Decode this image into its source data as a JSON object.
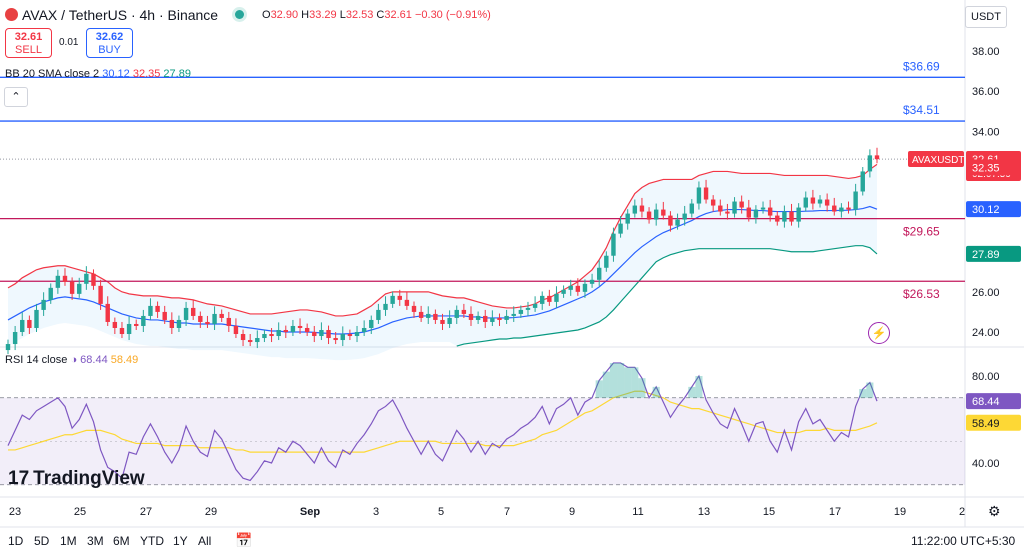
{
  "header": {
    "symbol_title": "AVAX / TetherUS · 4h · Binance",
    "ohlc": {
      "o_label": "O",
      "o": "32.90",
      "h_label": "H",
      "h": "33.29",
      "l_label": "L",
      "l": "32.53",
      "c_label": "C",
      "c": "32.61",
      "change": "−0.30 (−0.91%)"
    },
    "sell_price": "32.61",
    "sell_label": "SELL",
    "spread": "0.01",
    "buy_price": "32.62",
    "buy_label": "BUY",
    "currency": "USDT"
  },
  "indicators": {
    "bb": {
      "label": "BB 20 SMA close 2",
      "basis": "30.12",
      "upper": "32.35",
      "lower": "27.89"
    },
    "rsi": {
      "label": "RSI 14 close",
      "value": "68.44",
      "ma": "58.49"
    }
  },
  "bottom_bar": {
    "timeframes": [
      "1D",
      "5D",
      "1M",
      "3M",
      "6M",
      "YTD",
      "1Y",
      "All"
    ],
    "clock": "11:22:00 UTC+5:30",
    "brand": "TradingView"
  },
  "colors": {
    "up": "#26a69a",
    "down": "#f23645",
    "bb_basis": "#2962ff",
    "bb_band": "#f23645",
    "bb_lower": "#089981",
    "rsi": "#7e57c2",
    "rsi_ma": "#fdd835",
    "hline_blue": "#2962ff",
    "hline_red": "#c2185b"
  },
  "chart_data": {
    "type": "candlestick",
    "y_axis": {
      "ticks": [
        24,
        26,
        28,
        30,
        32,
        34,
        36,
        38
      ],
      "tick_labels": [
        "24.00",
        "26.00",
        "28.00",
        "30.00",
        "32.00",
        "34.00",
        "36.00",
        "38.00"
      ]
    },
    "x_axis": {
      "ticks": [
        "23",
        "25",
        "27",
        "29",
        "Sep",
        "3",
        "5",
        "7",
        "9",
        "11",
        "13",
        "15",
        "17",
        "19",
        "2"
      ]
    },
    "hlines": [
      {
        "label": "$36.69",
        "value": 36.69,
        "color": "blue"
      },
      {
        "label": "$34.51",
        "value": 34.51,
        "color": "blue"
      },
      {
        "label": "$29.65",
        "value": 29.65,
        "color": "red"
      },
      {
        "label": "$26.53",
        "value": 26.53,
        "color": "red"
      }
    ],
    "price_labels": {
      "symbol": "AVAXUSDT",
      "last": "32.61",
      "countdown": "02:07:59",
      "bb_upper": "32.35",
      "bb_basis": "30.12",
      "bb_lower": "27.89"
    },
    "closes": [
      23.4,
      24.0,
      24.6,
      24.2,
      25.1,
      25.6,
      26.2,
      26.8,
      26.5,
      25.9,
      26.4,
      26.9,
      26.3,
      25.4,
      24.5,
      24.2,
      23.9,
      24.4,
      24.3,
      24.8,
      25.3,
      25.0,
      24.6,
      24.2,
      24.6,
      25.2,
      24.8,
      24.5,
      24.4,
      24.9,
      24.7,
      24.3,
      23.9,
      23.6,
      23.5,
      23.7,
      23.9,
      23.8,
      24.1,
      24.0,
      24.3,
      24.2,
      24.0,
      23.8,
      24.1,
      23.7,
      23.6,
      23.9,
      23.8,
      24.0,
      24.2,
      24.6,
      25.1,
      25.4,
      25.8,
      25.6,
      25.3,
      25.0,
      24.7,
      24.9,
      24.6,
      24.4,
      24.7,
      25.1,
      24.9,
      24.6,
      24.8,
      24.5,
      24.7,
      24.6,
      24.8,
      24.9,
      25.1,
      25.2,
      25.4,
      25.8,
      25.5,
      25.9,
      26.1,
      26.3,
      26.0,
      26.4,
      26.6,
      27.2,
      27.8,
      28.9,
      29.4,
      29.9,
      30.3,
      30.0,
      29.6,
      30.1,
      29.8,
      29.3,
      29.6,
      29.9,
      30.4,
      31.2,
      30.6,
      30.3,
      30.0,
      29.9,
      30.5,
      30.2,
      29.7,
      30.1,
      30.2,
      29.8,
      29.5,
      30.0,
      29.5,
      30.2,
      30.7,
      30.4,
      30.6,
      30.3,
      30.0,
      30.2,
      30.1,
      31.0,
      32.0,
      32.8,
      32.61
    ],
    "bb_upper": [
      26.2,
      26.4,
      26.7,
      26.9,
      27.1,
      27.2,
      27.25,
      27.3,
      27.3,
      27.2,
      27.1,
      27.0,
      26.9,
      26.7,
      26.5,
      26.2,
      26.0,
      25.9,
      25.85,
      25.8,
      25.8,
      25.8,
      25.75,
      25.7,
      25.7,
      25.65,
      25.6,
      25.5,
      25.4,
      25.35,
      25.3,
      25.2,
      25.1,
      25.0,
      24.9,
      24.9,
      24.9,
      24.9,
      24.95,
      25.0,
      25.05,
      25.1,
      25.1,
      25.05,
      25.0,
      24.9,
      24.8,
      24.8,
      24.85,
      24.9,
      25.1,
      25.3,
      25.6,
      25.9,
      26.0,
      26.0,
      26.0,
      26.0,
      26.0,
      26.0,
      25.9,
      25.8,
      25.75,
      25.7,
      25.7,
      25.6,
      25.5,
      25.4,
      25.3,
      25.25,
      25.2,
      25.2,
      25.25,
      25.3,
      25.4,
      25.6,
      25.7,
      25.9,
      26.1,
      26.3,
      26.5,
      26.8,
      27.1,
      27.6,
      28.2,
      29.0,
      29.7,
      30.3,
      30.9,
      31.2,
      31.4,
      31.5,
      31.6,
      31.6,
      31.6,
      31.6,
      31.6,
      31.8,
      31.9,
      32.0,
      32.0,
      32.0,
      31.95,
      31.9,
      31.9,
      31.9,
      31.9,
      31.9,
      31.85,
      31.8,
      31.8,
      31.8,
      31.8,
      31.8,
      31.8,
      31.8,
      31.75,
      31.7,
      31.65,
      31.7,
      31.8,
      32.1,
      32.35
    ],
    "bb_basis": [
      24.6,
      24.8,
      25.0,
      25.2,
      25.35,
      25.5,
      25.6,
      25.7,
      25.75,
      25.7,
      25.65,
      25.6,
      25.5,
      25.35,
      25.2,
      25.05,
      24.9,
      24.8,
      24.7,
      24.65,
      24.6,
      24.6,
      24.55,
      24.5,
      24.45,
      24.45,
      24.4,
      24.4,
      24.4,
      24.4,
      24.4,
      24.35,
      24.3,
      24.25,
      24.2,
      24.15,
      24.1,
      24.05,
      24.05,
      24.0,
      24.0,
      24.0,
      24.0,
      23.98,
      23.95,
      23.93,
      23.9,
      23.9,
      23.92,
      23.95,
      24.0,
      24.1,
      24.2,
      24.35,
      24.5,
      24.6,
      24.7,
      24.75,
      24.8,
      24.8,
      24.8,
      24.8,
      24.8,
      24.8,
      24.8,
      24.75,
      24.75,
      24.7,
      24.7,
      24.7,
      24.7,
      24.72,
      24.75,
      24.8,
      24.85,
      24.95,
      25.05,
      25.2,
      25.35,
      25.5,
      25.65,
      25.8,
      26.0,
      26.25,
      26.55,
      26.9,
      27.25,
      27.6,
      27.95,
      28.25,
      28.5,
      28.75,
      28.95,
      29.1,
      29.25,
      29.4,
      29.55,
      29.75,
      29.9,
      30.0,
      30.05,
      30.1,
      30.1,
      30.1,
      30.08,
      30.05,
      30.05,
      30.02,
      30.0,
      30.0,
      30.0,
      30.0,
      30.02,
      30.03,
      30.05,
      30.05,
      30.05,
      30.06,
      30.07,
      30.1,
      30.15,
      30.25,
      30.12
    ],
    "bb_lower": [
      null,
      null,
      null,
      null,
      null,
      null,
      null,
      null,
      null,
      null,
      null,
      null,
      null,
      null,
      null,
      null,
      null,
      null,
      null,
      null,
      null,
      null,
      null,
      null,
      null,
      null,
      null,
      null,
      null,
      null,
      null,
      null,
      null,
      null,
      null,
      null,
      null,
      null,
      null,
      null,
      null,
      null,
      null,
      null,
      null,
      null,
      null,
      null,
      null,
      null,
      null,
      null,
      null,
      null,
      null,
      null,
      null,
      null,
      null,
      null,
      null,
      null,
      null,
      23.3,
      23.4,
      23.45,
      23.5,
      23.55,
      23.6,
      23.65,
      23.65,
      23.7,
      23.7,
      23.75,
      23.8,
      23.85,
      23.9,
      23.95,
      24.0,
      24.05,
      24.1,
      24.2,
      24.35,
      24.5,
      24.75,
      25.1,
      25.5,
      25.9,
      26.3,
      26.7,
      27.1,
      27.5,
      27.7,
      27.85,
      27.95,
      28.05,
      28.1,
      28.15,
      28.15,
      28.15,
      28.15,
      28.15,
      28.15,
      28.15,
      28.15,
      28.15,
      28.15,
      28.15,
      28.1,
      28.05,
      28.0,
      28.0,
      28.0,
      28.0,
      28.05,
      28.1,
      28.15,
      28.2,
      28.25,
      28.3,
      28.3,
      28.2,
      27.89
    ],
    "rsi": [
      48,
      55,
      62,
      60,
      64,
      66,
      68,
      70,
      66,
      56,
      60,
      67,
      59,
      46,
      38,
      36,
      33,
      45,
      44,
      52,
      58,
      52,
      45,
      40,
      46,
      57,
      50,
      45,
      43,
      55,
      51,
      44,
      37,
      33,
      32,
      36,
      41,
      40,
      47,
      45,
      50,
      48,
      44,
      40,
      47,
      41,
      38,
      46,
      44,
      49,
      53,
      58,
      64,
      66,
      69,
      63,
      56,
      50,
      44,
      50,
      44,
      41,
      48,
      55,
      51,
      45,
      50,
      44,
      49,
      47,
      51,
      53,
      56,
      58,
      61,
      66,
      58,
      65,
      67,
      70,
      62,
      68,
      70,
      78,
      82,
      86,
      86,
      84,
      84,
      79,
      70,
      75,
      68,
      61,
      66,
      70,
      75,
      80,
      69,
      63,
      58,
      56,
      65,
      58,
      50,
      58,
      59,
      50,
      45,
      55,
      46,
      59,
      65,
      58,
      60,
      55,
      50,
      54,
      52,
      66,
      74,
      77,
      68.44
    ],
    "rsi_ma": [
      46,
      46,
      47,
      48,
      49,
      50,
      51,
      52,
      53,
      53,
      54,
      55,
      55,
      55,
      54,
      53,
      51,
      50,
      49,
      49,
      49,
      49,
      48,
      48,
      48,
      48,
      48,
      47,
      47,
      47,
      47,
      47,
      46,
      46,
      45,
      45,
      45,
      45,
      45,
      45,
      45,
      45,
      45,
      45,
      45,
      45,
      45,
      45,
      45,
      45,
      45,
      46,
      47,
      48,
      49,
      50,
      50,
      50,
      50,
      50,
      50,
      49,
      49,
      49,
      49,
      49,
      49,
      48,
      48,
      48,
      48,
      48,
      49,
      50,
      51,
      53,
      54,
      55,
      57,
      59,
      61,
      63,
      64,
      66,
      68,
      70,
      71,
      72,
      73,
      73,
      72,
      71,
      70,
      68,
      67,
      66,
      65,
      65,
      64,
      63,
      62,
      61,
      60,
      59,
      58,
      57,
      56,
      55,
      54,
      54,
      54,
      54,
      55,
      55,
      55,
      56,
      55,
      55,
      55,
      55,
      56,
      57,
      58.49
    ],
    "rsi_axis": {
      "ticks": [
        40,
        60,
        80
      ],
      "tick_labels": [
        "40.00",
        "",
        "80.00"
      ],
      "band": [
        30,
        70
      ],
      "labels": {
        "rsi": "68.44",
        "ma": "58.49"
      }
    }
  }
}
